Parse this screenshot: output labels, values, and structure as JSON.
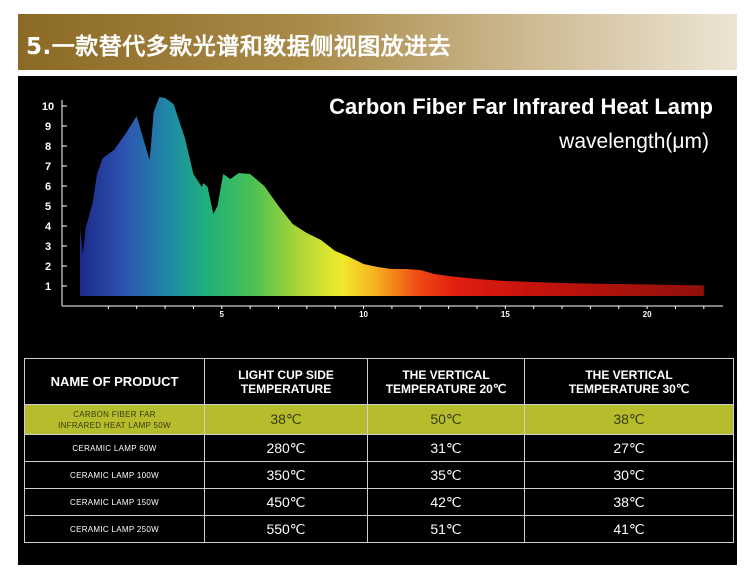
{
  "banner": {
    "title": "5.一款替代多款光谱和数据侧视图放进去"
  },
  "chart_data": {
    "type": "area",
    "title": "Carbon Fiber Far Infrared Heat Lamp",
    "unit": "wavelength(μm)",
    "yticks": [
      "1",
      "2",
      "3",
      "4",
      "5",
      "6",
      "7",
      "8",
      "9",
      "10"
    ],
    "xticks": [
      "5",
      "10",
      "15",
      "20"
    ],
    "xlim": [
      0,
      22.5
    ],
    "ylim": [
      0.5,
      10.5
    ],
    "x": [
      0,
      0.1,
      0.2,
      0.45,
      0.6,
      0.8,
      1.2,
      1.6,
      2.0,
      2.45,
      2.5,
      2.6,
      2.8,
      3.0,
      3.3,
      3.7,
      4.0,
      4.3,
      4.35,
      4.5,
      4.7,
      4.85,
      5.05,
      5.3,
      5.6,
      6.0,
      6.5,
      7.0,
      7.5,
      8.0,
      8.5,
      9.0,
      9.5,
      10.0,
      10.5,
      11.0,
      11.5,
      12.0,
      12.5,
      13.0,
      14.0,
      15.0,
      16.0,
      17.0,
      18.0,
      19.0,
      20.0,
      21.0,
      22.0
    ],
    "y": [
      3.9,
      2.6,
      3.9,
      5.2,
      6.6,
      7.4,
      7.8,
      8.6,
      9.5,
      7.3,
      8.0,
      9.7,
      10.45,
      10.4,
      10.1,
      8.4,
      6.6,
      5.95,
      6.15,
      5.95,
      4.6,
      5.0,
      6.6,
      6.35,
      6.65,
      6.6,
      6.0,
      5.0,
      4.1,
      3.65,
      3.3,
      2.75,
      2.45,
      2.1,
      1.95,
      1.85,
      1.85,
      1.8,
      1.6,
      1.5,
      1.35,
      1.25,
      1.2,
      1.15,
      1.12,
      1.1,
      1.08,
      1.05,
      1.03
    ]
  },
  "table": {
    "headers": [
      "NAME OF PRODUCT",
      "LIGHT CUP SIDE TEMPERATURE",
      "THE VERTICAL\nTEMPERATURE 20℃",
      "THE VERTICAL\nTEMPERATURE 30℃"
    ],
    "rows": [
      [
        "CARBON FIBER FAR\nINFRARED HEAT LAMP 50W",
        "38℃",
        "50℃",
        "38℃"
      ],
      [
        "CERAMIC  LAMP 60W",
        "280℃",
        "31℃",
        "27℃"
      ],
      [
        "CERAMIC  LAMP 100W",
        "350℃",
        "35℃",
        "30℃"
      ],
      [
        "CERAMIC  LAMP 150W",
        "450℃",
        "42℃",
        "38℃"
      ],
      [
        "CERAMIC  LAMP 250W",
        "550℃",
        "51℃",
        "41℃"
      ]
    ]
  },
  "colors": {
    "highlight_row": "#b5bd2d",
    "banner_gold": "#8a6a24"
  }
}
